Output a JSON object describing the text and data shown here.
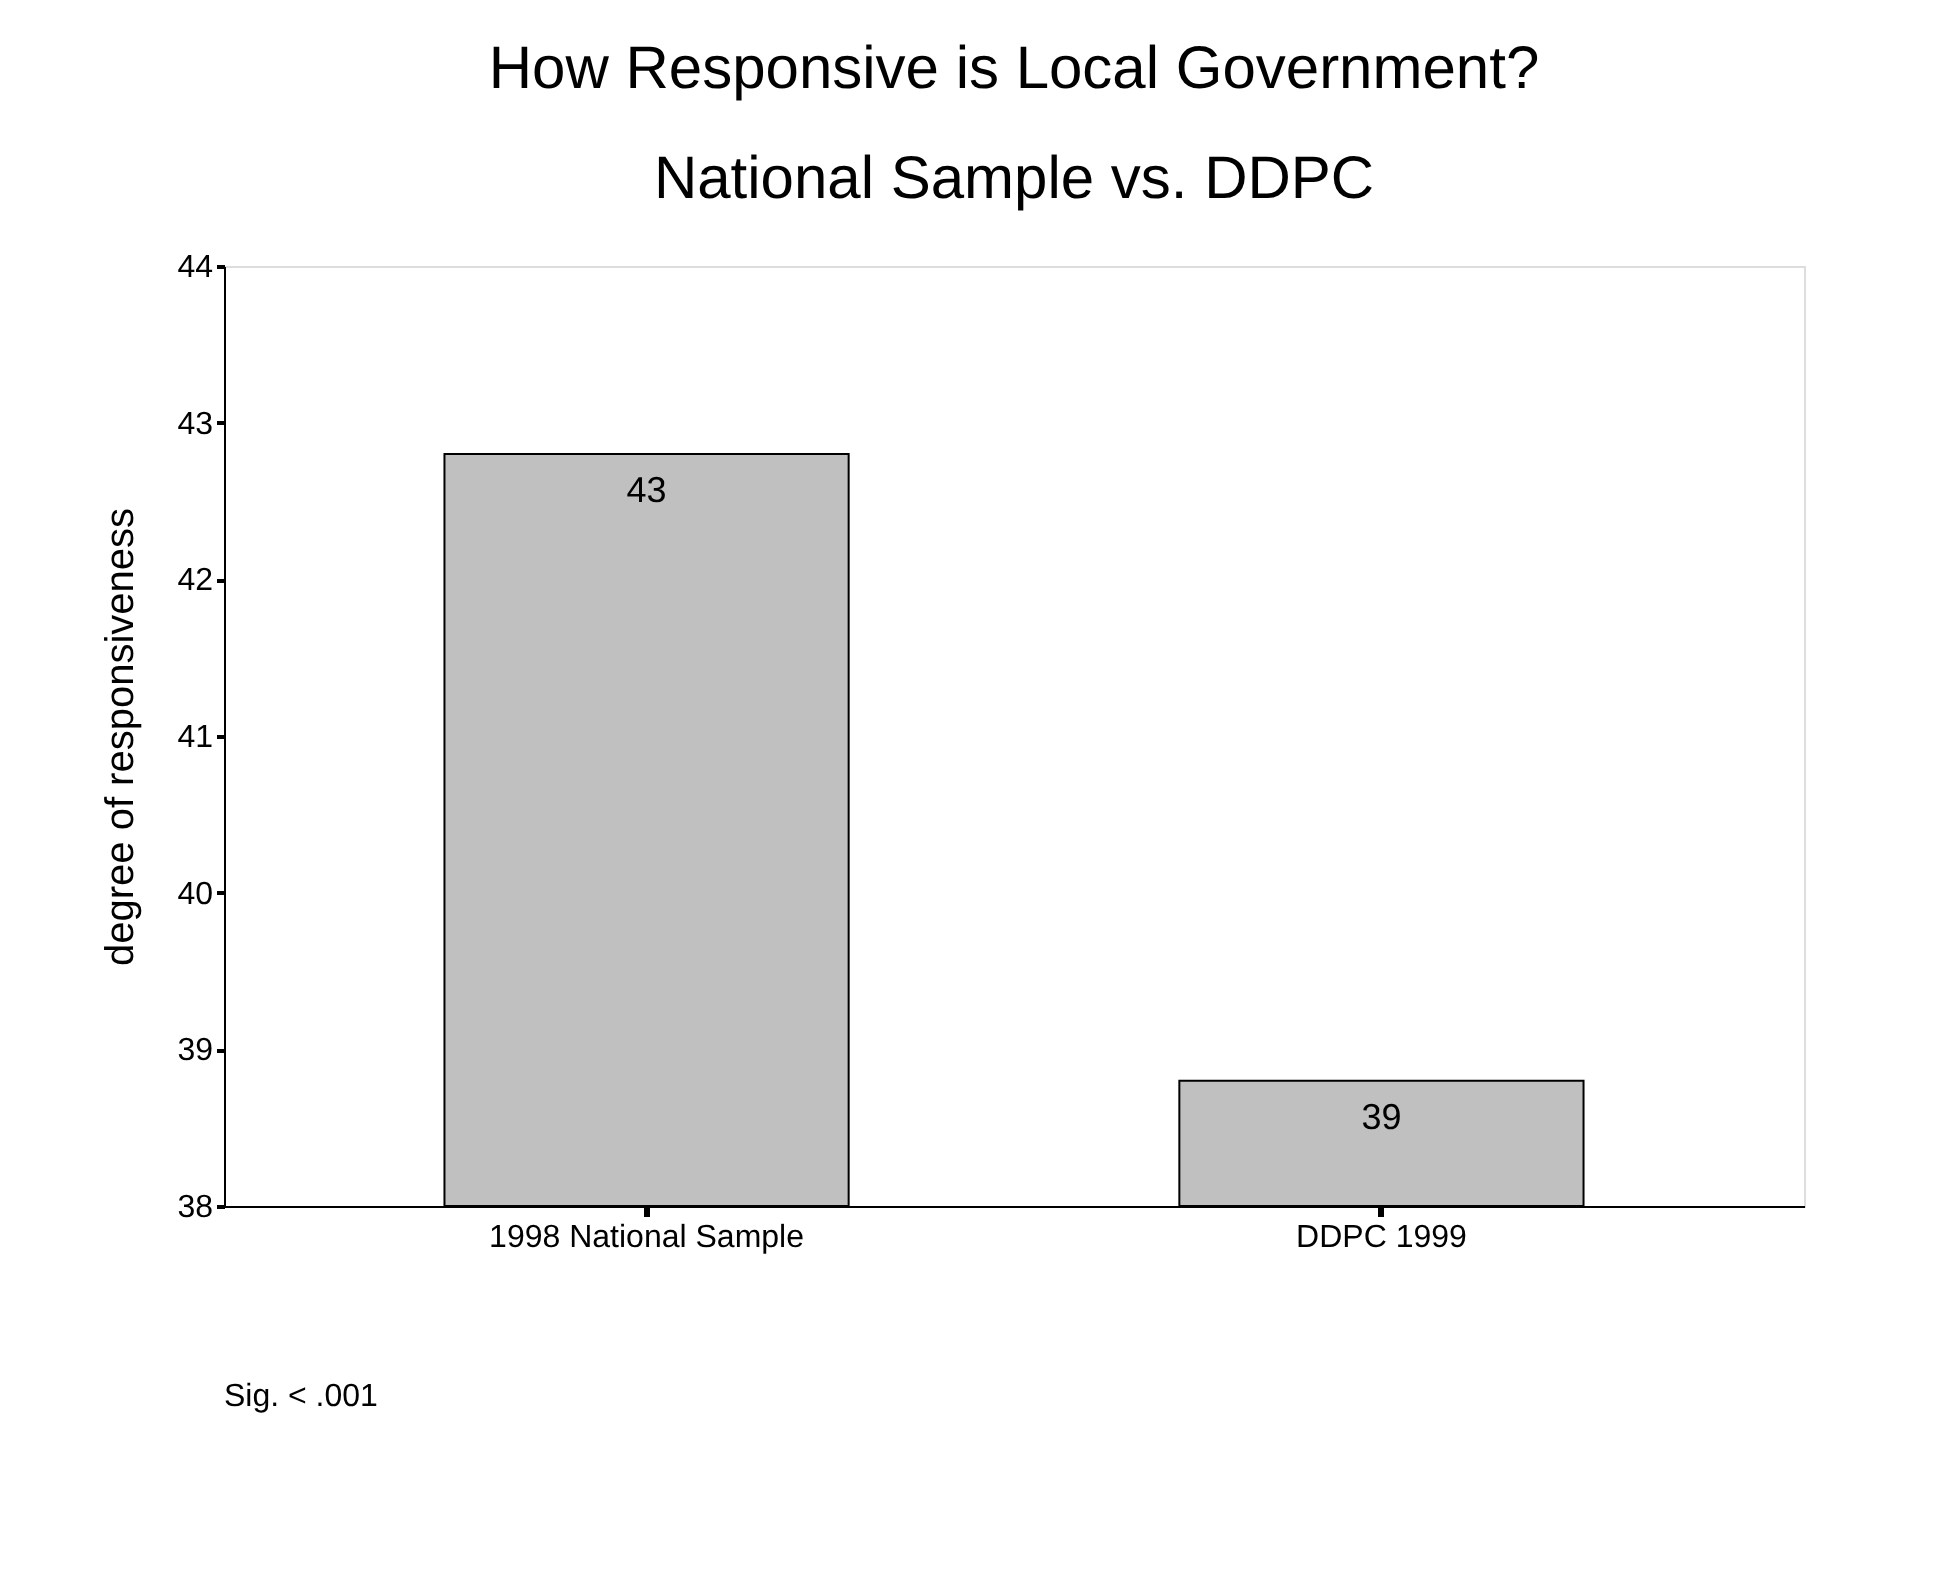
{
  "chart_data": {
    "type": "bar",
    "title": "How Responsive is Local Government?",
    "subtitle": "National Sample vs. DDPC",
    "ylabel": "degree of responsiveness",
    "categories": [
      "1998 National Sample",
      "DDPC 1999"
    ],
    "values": [
      42.8,
      38.8
    ],
    "value_labels": [
      "43",
      "39"
    ],
    "color": "#c0c0c0",
    "ylim": [
      38,
      44
    ],
    "yticks": [
      38,
      39,
      40,
      41,
      42,
      43,
      44
    ],
    "grid": false,
    "annotations": [
      "Sig. < .001"
    ]
  }
}
